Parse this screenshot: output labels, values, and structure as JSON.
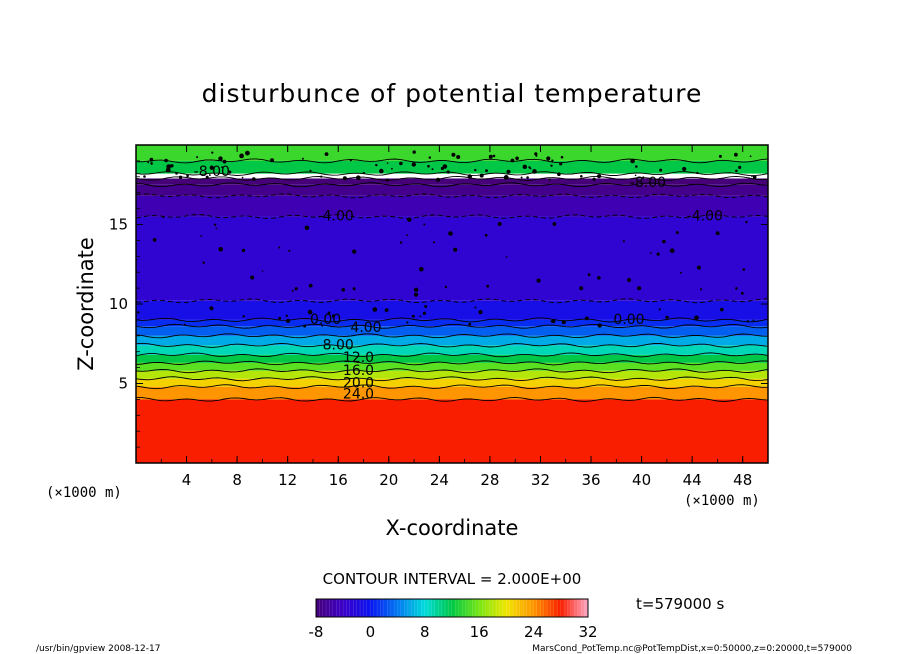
{
  "chart_data": {
    "type": "heatmap",
    "title": "disturbunce of potential temperature",
    "xlabel": "X-coordinate",
    "ylabel": "Z-coordinate",
    "x_unit": "(×1000 m)",
    "y_unit": "(×1000 m)",
    "xlim": [
      0,
      50
    ],
    "ylim": [
      0,
      20
    ],
    "x_ticks": [
      "4",
      "8",
      "12",
      "16",
      "20",
      "24",
      "28",
      "32",
      "36",
      "40",
      "44",
      "48"
    ],
    "y_ticks": [
      "5",
      "10",
      "15"
    ],
    "contour_interval_text": "CONTOUR INTERVAL = 2.000E+00",
    "time_text": "t=579000 s",
    "colorbar": {
      "min": -8,
      "max": 32,
      "ticks": [
        "-8",
        "0",
        "8",
        "16",
        "24",
        "32"
      ]
    },
    "layers": [
      {
        "z_bottom": 0,
        "z_top": 4,
        "value": 28
      },
      {
        "z_bottom": 4,
        "z_top": 4.8,
        "value": 24
      },
      {
        "z_bottom": 4.8,
        "z_top": 5.3,
        "value": 21
      },
      {
        "z_bottom": 5.3,
        "z_top": 5.8,
        "value": 18
      },
      {
        "z_bottom": 5.8,
        "z_top": 6.3,
        "value": 15
      },
      {
        "z_bottom": 6.3,
        "z_top": 6.8,
        "value": 12
      },
      {
        "z_bottom": 6.8,
        "z_top": 7.4,
        "value": 9
      },
      {
        "z_bottom": 7.4,
        "z_top": 8.0,
        "value": 6
      },
      {
        "z_bottom": 8.0,
        "z_top": 8.6,
        "value": 3
      },
      {
        "z_bottom": 8.6,
        "z_top": 9.0,
        "value": 1
      },
      {
        "z_bottom": 9.0,
        "z_top": 10.2,
        "value": -1
      },
      {
        "z_bottom": 10.2,
        "z_top": 15.5,
        "value": -3
      },
      {
        "z_bottom": 15.5,
        "z_top": 16.8,
        "value": -5
      },
      {
        "z_bottom": 16.8,
        "z_top": 17.5,
        "value": -7
      },
      {
        "z_bottom": 17.5,
        "z_top": 17.9,
        "value": -8
      },
      {
        "z_bottom": 17.9,
        "z_top": 18.2,
        "value": null
      },
      {
        "z_bottom": 18.2,
        "z_top": 19.0,
        "value": 12
      },
      {
        "z_bottom": 19.0,
        "z_top": 20,
        "value": 14
      }
    ],
    "contour_labels": [
      {
        "text": "0.00",
        "x": 15.0,
        "z": 9.0
      },
      {
        "text": "4.00",
        "x": 18.2,
        "z": 8.5
      },
      {
        "text": "8.00",
        "x": 16.0,
        "z": 7.4
      },
      {
        "text": "12.0",
        "x": 17.6,
        "z": 6.6
      },
      {
        "text": "16.0",
        "x": 17.6,
        "z": 5.8
      },
      {
        "text": "20.0",
        "x": 17.6,
        "z": 5.0
      },
      {
        "text": "24.0",
        "x": 17.6,
        "z": 4.3
      },
      {
        "text": "-4.00",
        "x": 15.8,
        "z": 15.5
      },
      {
        "text": "-4.00",
        "x": 45.0,
        "z": 15.5
      },
      {
        "text": "0.00",
        "x": 39.0,
        "z": 9.0
      },
      {
        "text": "-8.00",
        "x": 40.5,
        "z": 17.6
      },
      {
        "text": "-8.00",
        "x": 6.0,
        "z": 18.3
      }
    ],
    "grid": false,
    "legend": "bottom-colorbar"
  },
  "footer": {
    "left": "/usr/bin/gpview   2008-12-17",
    "right": "MarsCond_PotTemp.nc@PotTempDist,x=0:50000,z=0:20000,t=579000"
  }
}
